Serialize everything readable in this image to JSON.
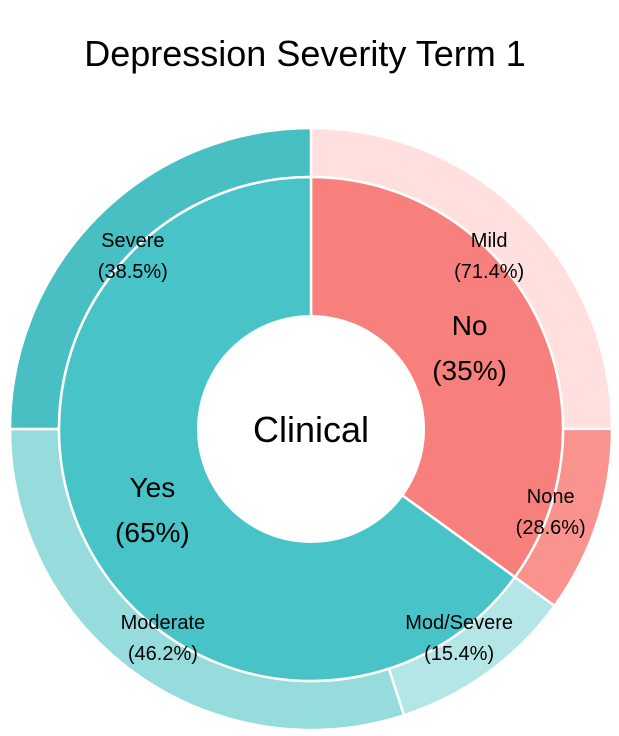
{
  "chart_data": {
    "type": "pie",
    "subtype": "nested-donut",
    "title": "Depression Severity Term 1",
    "center_label": "Clinical",
    "inner_ring": [
      {
        "label": "No",
        "value": 35,
        "percent_label": "(35%)",
        "color": "#F8807C"
      },
      {
        "label": "Yes",
        "value": 65,
        "percent_label": "(65%)",
        "color": "#48C3C7"
      }
    ],
    "outer_ring": [
      {
        "parent": "No",
        "label": "Mild",
        "value": 71.4,
        "percent_label": "(71.4%)",
        "color": "#FFE0DE"
      },
      {
        "parent": "No",
        "label": "None",
        "value": 28.6,
        "percent_label": "(28.6%)",
        "color": "#FA928E"
      },
      {
        "parent": "Yes",
        "label": "Mod/Severe",
        "value": 15.4,
        "percent_label": "(15.4%)",
        "color": "#B5E6E7"
      },
      {
        "parent": "Yes",
        "label": "Moderate",
        "value": 46.2,
        "percent_label": "(46.2%)",
        "color": "#97DCDD"
      },
      {
        "parent": "Yes",
        "label": "Severe",
        "value": 38.5,
        "percent_label": "(38.5%)",
        "color": "#48BFC3"
      }
    ],
    "legend": "none",
    "grid": false
  }
}
